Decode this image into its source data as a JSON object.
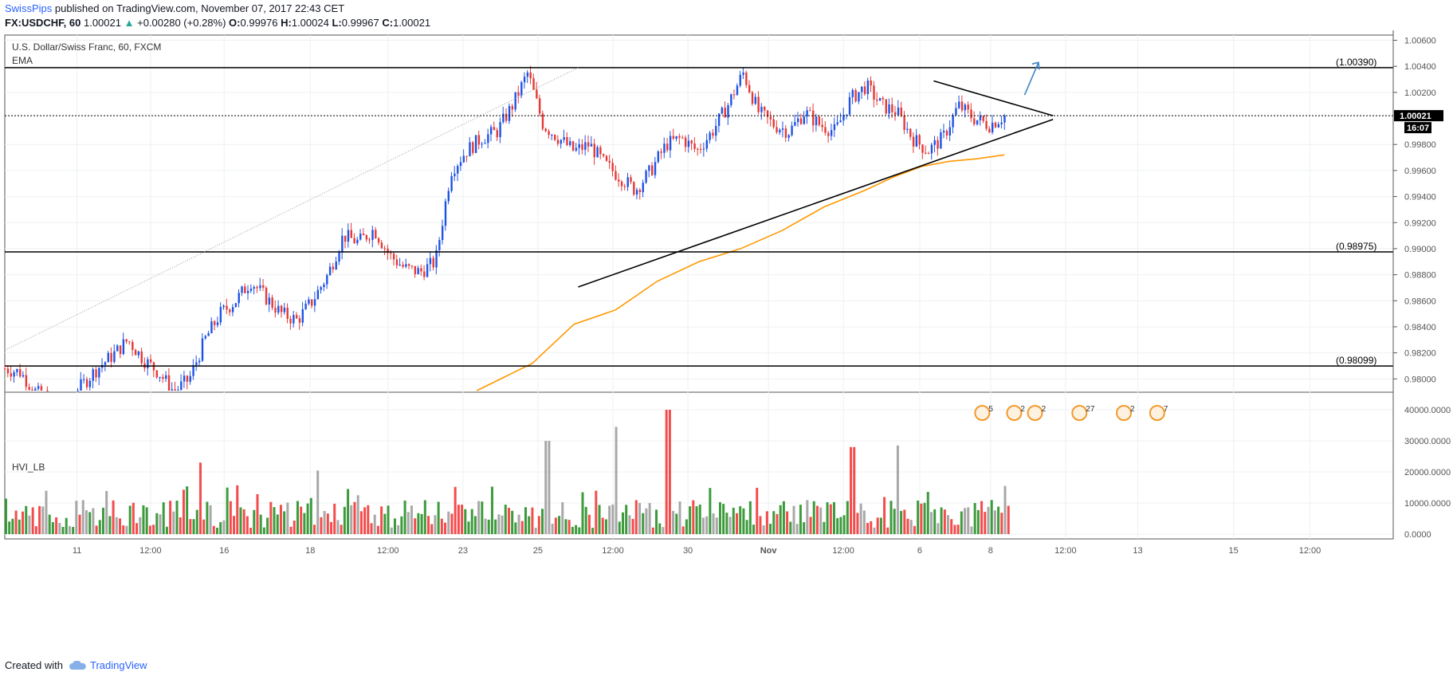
{
  "header": {
    "user": "SwissPips",
    "published_text": "published on TradingView.com, November 07, 2017 22:43 CET"
  },
  "ohlc_bar": {
    "symbol": "FX:USDCHF, 60",
    "last": "1.00021",
    "change": "+0.00280 (+0.28%)",
    "open_label": "O:",
    "open": "0.99976",
    "high_label": "H:",
    "high": "1.00024",
    "low_label": "L:",
    "low": "0.99967",
    "close_label": "C:",
    "close": "1.00021"
  },
  "footer": {
    "created_with": "Created with",
    "brand": "TradingView"
  },
  "colors": {
    "up": "#1e53e5",
    "down": "#e53935",
    "ema": "#ff9800",
    "vol_green": "#1b8a1b",
    "vol_red": "#f22d2d",
    "vol_gray": "#999999",
    "arrow": "#3d85c6"
  },
  "chart_data": [
    {
      "type": "candlestick",
      "title": "U.S. Dollar/Swiss Franc, 60, FXCM",
      "indicator": "EMA",
      "y_ticks": [
        "1.00600",
        "1.00400",
        "1.00200",
        "0.99800",
        "0.99600",
        "0.99400",
        "0.99200",
        "0.99000",
        "0.98800",
        "0.98600",
        "0.98400",
        "0.98200",
        "0.98000"
      ],
      "ylim": [
        0.9791,
        1.0064
      ],
      "x_ticks": [
        "11",
        "12:00",
        "16",
        "18",
        "12:00",
        "23",
        "25",
        "12:00",
        "30",
        "Nov",
        "12:00",
        "6",
        "8",
        "12:00",
        "13",
        "15",
        "12:00"
      ],
      "price_label": "1.00021",
      "countdown": "16:07",
      "levels": [
        {
          "label": "(1.00390)",
          "value": 1.0039
        },
        {
          "label": "(0.98975)",
          "value": 0.98975
        },
        {
          "label": "(0.98099)",
          "value": 0.98099
        }
      ],
      "price_path": [
        0.9808,
        0.9805,
        0.979,
        0.9782,
        0.978,
        0.9795,
        0.9808,
        0.9818,
        0.983,
        0.9815,
        0.9805,
        0.979,
        0.98,
        0.983,
        0.985,
        0.986,
        0.9875,
        0.9862,
        0.985,
        0.9845,
        0.986,
        0.988,
        0.991,
        0.9905,
        0.9915,
        0.9895,
        0.9885,
        0.9882,
        0.989,
        0.996,
        0.9975,
        0.9985,
        0.999,
        1.001,
        1.0035,
        0.9995,
        0.9985,
        0.9975,
        0.998,
        0.9965,
        0.9955,
        0.9945,
        0.996,
        0.998,
        0.9985,
        0.9975,
        0.999,
        1.001,
        1.0035,
        1.0005,
        0.9995,
        0.999,
        1.0005,
        0.9995,
        0.999,
        1.0015,
        1.0025,
        1.001,
        1.0005,
        0.9985,
        0.9975,
        0.9985,
        1.001,
        1.0,
        0.9995,
        1.0002
      ],
      "ema_path": [
        [
          0.34,
          0.9791
        ],
        [
          0.38,
          0.9812
        ],
        [
          0.41,
          0.9842
        ],
        [
          0.44,
          0.9853
        ],
        [
          0.47,
          0.9875
        ],
        [
          0.5,
          0.989
        ],
        [
          0.53,
          0.99
        ],
        [
          0.56,
          0.9914
        ],
        [
          0.59,
          0.9932
        ],
        [
          0.62,
          0.9945
        ],
        [
          0.64,
          0.9955
        ],
        [
          0.66,
          0.9963
        ],
        [
          0.68,
          0.9967
        ],
        [
          0.7,
          0.9969
        ],
        [
          0.72,
          0.9972
        ]
      ],
      "trendlines": [
        {
          "from": [
            0.413,
            0.98706
          ],
          "to": [
            0.755,
            0.99993
          ]
        },
        {
          "from": [
            0.669,
            1.00288
          ],
          "to": [
            0.755,
            1.00021
          ]
        }
      ],
      "event_badges": [
        "5",
        "2",
        "2",
        "27",
        "2",
        "7"
      ]
    },
    {
      "type": "bar",
      "title": "HVI_LB",
      "y_ticks": [
        "40000.0000",
        "30000.0000",
        "20000.0000",
        "10000.0000",
        "0.0000"
      ],
      "ylim": [
        0,
        40000
      ],
      "note": "volatility histogram, values per bar",
      "peaks": [
        {
          "x": 0.14,
          "value": 23000,
          "color": "red"
        },
        {
          "x": 0.39,
          "value": 30000,
          "color": "gray"
        },
        {
          "x": 0.44,
          "value": 34500,
          "color": "gray"
        },
        {
          "x": 0.477,
          "value": 40000,
          "color": "red"
        },
        {
          "x": 0.61,
          "value": 28000,
          "color": "red"
        },
        {
          "x": 0.643,
          "value": 28500,
          "color": "gray"
        },
        {
          "x": 0.72,
          "value": 15500,
          "color": "gray"
        }
      ]
    }
  ]
}
